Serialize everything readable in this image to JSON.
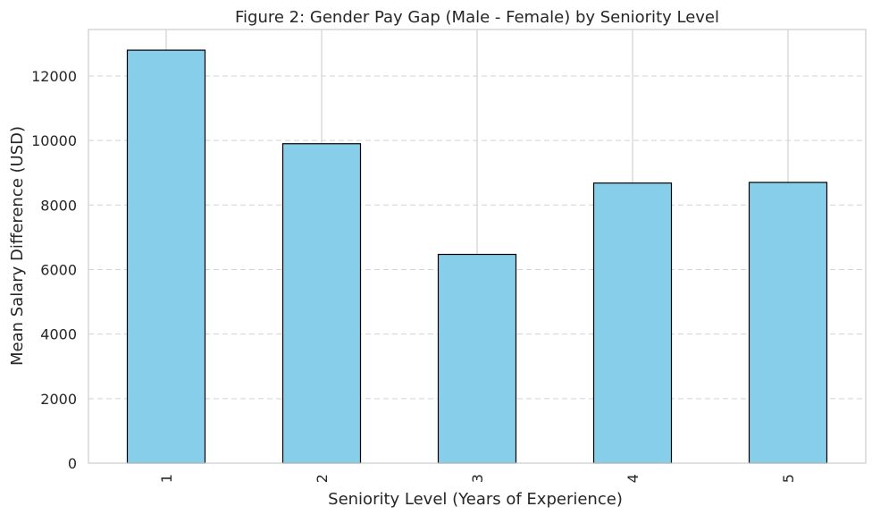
{
  "chart_data": {
    "type": "bar",
    "title": "Figure 2: Gender Pay Gap (Male - Female) by Seniority Level",
    "xlabel": "Seniority Level (Years of Experience)",
    "ylabel": "Mean Salary Difference (USD)",
    "categories": [
      "1",
      "2",
      "3",
      "4",
      "5"
    ],
    "values": [
      12800,
      9900,
      6470,
      8680,
      8700
    ],
    "ylim": [
      0,
      13440
    ],
    "yticks": [
      "0",
      "2000",
      "4000",
      "6000",
      "8000",
      "10000",
      "12000"
    ],
    "grid": "y dashed, x solid",
    "legend": "none",
    "bar_color": "#87CEEB",
    "bar_edge_color": "#000000"
  }
}
